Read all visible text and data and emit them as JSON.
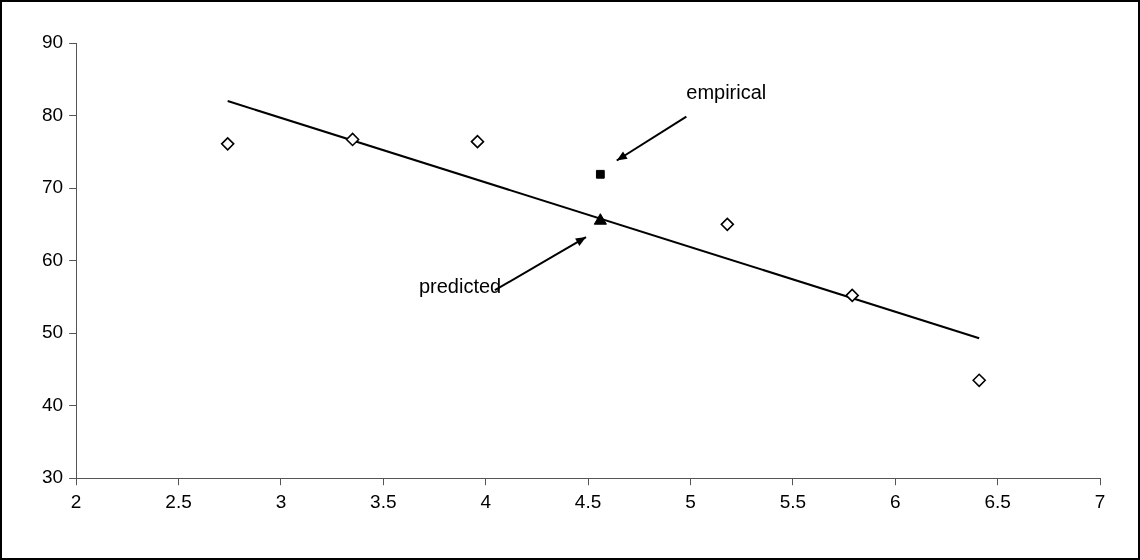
{
  "chart_data": {
    "type": "scatter",
    "xlim": [
      2,
      7
    ],
    "xticks": [
      2,
      2.5,
      3,
      3.5,
      4,
      4.5,
      5,
      5.5,
      6,
      6.5,
      7
    ],
    "ylim": [
      30,
      90
    ],
    "yticks": [
      30,
      40,
      50,
      60,
      70,
      80,
      90
    ],
    "grid": false,
    "legend": false,
    "series": [
      {
        "type": "scatter",
        "color": "#000000",
        "marker": "diamond",
        "x": [
          2.74,
          3.35,
          3.96,
          5.18,
          5.79,
          6.41
        ],
        "values": [
          76.1,
          76.7,
          76.4,
          65.0,
          55.2,
          43.5
        ]
      },
      {
        "type": "line",
        "color": "#000000",
        "marker": "none",
        "line_style": "solid",
        "x": [
          2.74,
          6.41
        ],
        "values": [
          82.0,
          49.3
        ]
      },
      {
        "type": "scatter",
        "color": "#000000",
        "marker": "square",
        "x": [
          4.56
        ],
        "values": [
          71.9
        ]
      },
      {
        "type": "scatter",
        "color": "#000000",
        "marker": "triangle",
        "x": [
          4.56
        ],
        "values": [
          65.5
        ]
      }
    ],
    "annotations": [
      "empirical",
      "predicted"
    ]
  }
}
